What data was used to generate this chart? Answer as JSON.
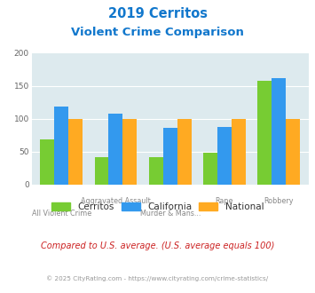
{
  "title_line1": "2019 Cerritos",
  "title_line2": "Violent Crime Comparison",
  "categories": [
    "All Violent Crime",
    "Aggravated Assault",
    "Murder & Mans...",
    "Rape",
    "Robbery"
  ],
  "cerritos": [
    68,
    41,
    41,
    49,
    157
  ],
  "california": [
    118,
    108,
    86,
    87,
    162
  ],
  "national": [
    100,
    100,
    100,
    100,
    100
  ],
  "color_cerritos": "#77cc33",
  "color_california": "#3399ee",
  "color_national": "#ffaa22",
  "ylim": [
    0,
    200
  ],
  "yticks": [
    0,
    50,
    100,
    150,
    200
  ],
  "bg_color": "#ddeaee",
  "legend_labels": [
    "Cerritos",
    "California",
    "National"
  ],
  "footnote1": "Compared to U.S. average. (U.S. average equals 100)",
  "footnote2": "© 2025 CityRating.com - https://www.cityrating.com/crime-statistics/",
  "title_color": "#1177cc",
  "footnote1_color": "#cc2222",
  "footnote2_color": "#999999"
}
